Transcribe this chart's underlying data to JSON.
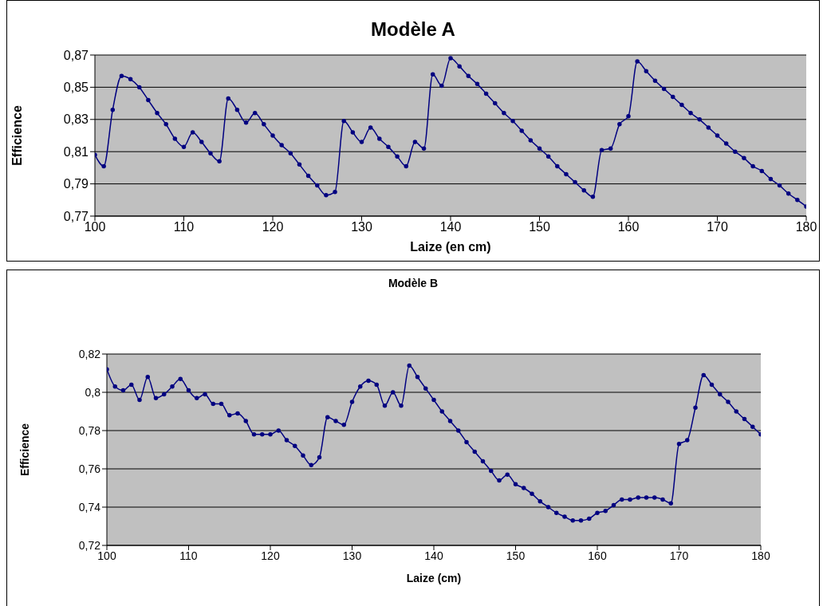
{
  "chart_data": [
    {
      "type": "line",
      "title": "Modèle A",
      "xlabel": "Laize (en cm)",
      "ylabel": "Efficience",
      "marker": "circle",
      "grid": "y",
      "xlim": [
        100,
        180
      ],
      "xticks": [
        100,
        110,
        120,
        130,
        140,
        150,
        160,
        170,
        180
      ],
      "ylim": [
        0.77,
        0.87
      ],
      "yticks": [
        {
          "value": 0.77,
          "label": "0,77"
        },
        {
          "value": 0.79,
          "label": "0,79"
        },
        {
          "value": 0.81,
          "label": "0,81"
        },
        {
          "value": 0.83,
          "label": "0,83"
        },
        {
          "value": 0.85,
          "label": "0,85"
        },
        {
          "value": 0.87,
          "label": "0,87"
        }
      ],
      "x": [
        100,
        101,
        102,
        103,
        104,
        105,
        106,
        107,
        108,
        109,
        110,
        111,
        112,
        113,
        114,
        115,
        116,
        117,
        118,
        119,
        120,
        121,
        122,
        123,
        124,
        125,
        126,
        127,
        128,
        129,
        130,
        131,
        132,
        133,
        134,
        135,
        136,
        137,
        138,
        139,
        140,
        141,
        142,
        143,
        144,
        145,
        146,
        147,
        148,
        149,
        150,
        151,
        152,
        153,
        154,
        155,
        156,
        157,
        158,
        159,
        160,
        161,
        162,
        163,
        164,
        165,
        166,
        167,
        168,
        169,
        170,
        171,
        172,
        173,
        174,
        175,
        176,
        177,
        178,
        179,
        180
      ],
      "series": [
        {
          "color": "#000080",
          "values": [
            0.808,
            0.801,
            0.836,
            0.857,
            0.855,
            0.85,
            0.842,
            0.834,
            0.827,
            0.818,
            0.813,
            0.822,
            0.816,
            0.809,
            0.804,
            0.843,
            0.836,
            0.828,
            0.834,
            0.827,
            0.82,
            0.814,
            0.809,
            0.802,
            0.795,
            0.789,
            0.783,
            0.785,
            0.829,
            0.822,
            0.816,
            0.825,
            0.818,
            0.813,
            0.807,
            0.801,
            0.816,
            0.812,
            0.858,
            0.851,
            0.868,
            0.863,
            0.857,
            0.852,
            0.846,
            0.84,
            0.834,
            0.829,
            0.823,
            0.817,
            0.812,
            0.807,
            0.801,
            0.796,
            0.791,
            0.786,
            0.782,
            0.811,
            0.812,
            0.827,
            0.832,
            0.866,
            0.86,
            0.854,
            0.849,
            0.844,
            0.839,
            0.834,
            0.83,
            0.825,
            0.82,
            0.815,
            0.81,
            0.806,
            0.801,
            0.798,
            0.793,
            0.789,
            0.784,
            0.78,
            0.776
          ]
        }
      ]
    },
    {
      "type": "line",
      "title": "Modèle B",
      "xlabel": "Laize (cm)",
      "ylabel": "Efficience",
      "marker": "circle",
      "grid": "y",
      "xlim": [
        100,
        180
      ],
      "xticks": [
        100,
        110,
        120,
        130,
        140,
        150,
        160,
        170,
        180
      ],
      "ylim": [
        0.72,
        0.82
      ],
      "yticks": [
        {
          "value": 0.72,
          "label": "0,72"
        },
        {
          "value": 0.74,
          "label": "0,74"
        },
        {
          "value": 0.76,
          "label": "0,76"
        },
        {
          "value": 0.78,
          "label": "0,78"
        },
        {
          "value": 0.8,
          "label": "0,8"
        },
        {
          "value": 0.82,
          "label": "0,82"
        }
      ],
      "x": [
        100,
        101,
        102,
        103,
        104,
        105,
        106,
        107,
        108,
        109,
        110,
        111,
        112,
        113,
        114,
        115,
        116,
        117,
        118,
        119,
        120,
        121,
        122,
        123,
        124,
        125,
        126,
        127,
        128,
        129,
        130,
        131,
        132,
        133,
        134,
        135,
        136,
        137,
        138,
        139,
        140,
        141,
        142,
        143,
        144,
        145,
        146,
        147,
        148,
        149,
        150,
        151,
        152,
        153,
        154,
        155,
        156,
        157,
        158,
        159,
        160,
        161,
        162,
        163,
        164,
        165,
        166,
        167,
        168,
        169,
        170,
        171,
        172,
        173,
        174,
        175,
        176,
        177,
        178,
        179,
        180
      ],
      "series": [
        {
          "color": "#000080",
          "values": [
            0.812,
            0.803,
            0.801,
            0.804,
            0.796,
            0.808,
            0.797,
            0.799,
            0.803,
            0.807,
            0.801,
            0.797,
            0.799,
            0.794,
            0.794,
            0.788,
            0.789,
            0.785,
            0.778,
            0.778,
            0.778,
            0.78,
            0.775,
            0.772,
            0.767,
            0.762,
            0.766,
            0.787,
            0.785,
            0.783,
            0.795,
            0.803,
            0.806,
            0.804,
            0.793,
            0.8,
            0.793,
            0.814,
            0.808,
            0.802,
            0.796,
            0.79,
            0.785,
            0.78,
            0.774,
            0.769,
            0.764,
            0.759,
            0.754,
            0.757,
            0.752,
            0.75,
            0.747,
            0.743,
            0.74,
            0.737,
            0.735,
            0.733,
            0.733,
            0.734,
            0.737,
            0.738,
            0.741,
            0.744,
            0.744,
            0.745,
            0.745,
            0.745,
            0.744,
            0.742,
            0.773,
            0.775,
            0.792,
            0.809,
            0.804,
            0.799,
            0.795,
            0.79,
            0.786,
            0.782,
            0.778
          ]
        }
      ]
    }
  ]
}
